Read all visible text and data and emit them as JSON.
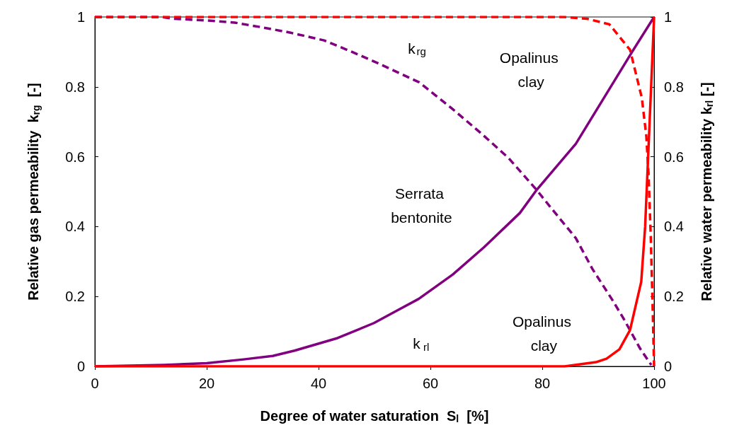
{
  "chart_data": {
    "type": "line",
    "xlabel": "Degree of water saturation  S$_{l}$  [%]",
    "ylabel": "Relative gas permeability  k$_{rg}$  [-]",
    "y2label": "Relative water permeability k$_{rl}$ [-]",
    "xlim": [
      0,
      100
    ],
    "xticks": [
      0,
      20,
      40,
      60,
      80,
      100
    ],
    "ylim": [
      0,
      1
    ],
    "yticks": [
      0,
      0.2,
      0.4,
      0.6,
      0.8,
      1
    ],
    "y2lim": [
      0,
      1
    ],
    "y2ticks": [
      0,
      0.2,
      0.4,
      0.6,
      0.8,
      1
    ],
    "grid": false,
    "marker": "none",
    "series": [
      {
        "color": "#800080",
        "line_style": "dashed",
        "x": [
          0,
          12,
          14,
          20,
          25,
          30,
          35,
          41,
          46,
          51,
          58,
          64,
          69,
          74,
          79,
          81.5,
          86,
          89,
          92.5,
          94.5,
          97.5,
          99.5
        ],
        "values": [
          1,
          1,
          0.995,
          0.99,
          0.984,
          0.97,
          0.955,
          0.933,
          0.9,
          0.865,
          0.813,
          0.736,
          0.668,
          0.596,
          0.505,
          0.455,
          0.367,
          0.278,
          0.191,
          0.138,
          0.051,
          0.004
        ]
      },
      {
        "color": "#800080",
        "line_style": "solid",
        "x": [
          0,
          12.4,
          20,
          26.6,
          31.8,
          35.7,
          43.4,
          49.9,
          53.7,
          57.9,
          64,
          69.6,
          76,
          79,
          86,
          96.3,
          100
        ],
        "values": [
          0,
          0.004,
          0.009,
          0.02,
          0.03,
          0.045,
          0.081,
          0.124,
          0.157,
          0.193,
          0.263,
          0.341,
          0.439,
          0.505,
          0.637,
          0.906,
          1
        ]
      },
      {
        "color": "#ff0000",
        "line_style": "dashed",
        "x": [
          0,
          84,
          88,
          92,
          95.7,
          97.8,
          98.6,
          99,
          99.4,
          99.7,
          100
        ],
        "values": [
          1,
          1,
          0.995,
          0.979,
          0.906,
          0.769,
          0.661,
          0.553,
          0.374,
          0.195,
          0
        ]
      },
      {
        "color": "#ff0000",
        "line_style": "solid",
        "x": [
          0,
          84,
          89.6,
          91.5,
          93.8,
          95.7,
          97.7,
          98.4,
          100
        ],
        "values": [
          0,
          0,
          0.012,
          0.022,
          0.049,
          0.104,
          0.242,
          0.4,
          1
        ]
      }
    ],
    "annotations": [
      "k$_{rg}$",
      "Opalinus clay",
      "Serrata bentonite",
      "k$_{rl}$",
      "Opalinus clay"
    ]
  }
}
